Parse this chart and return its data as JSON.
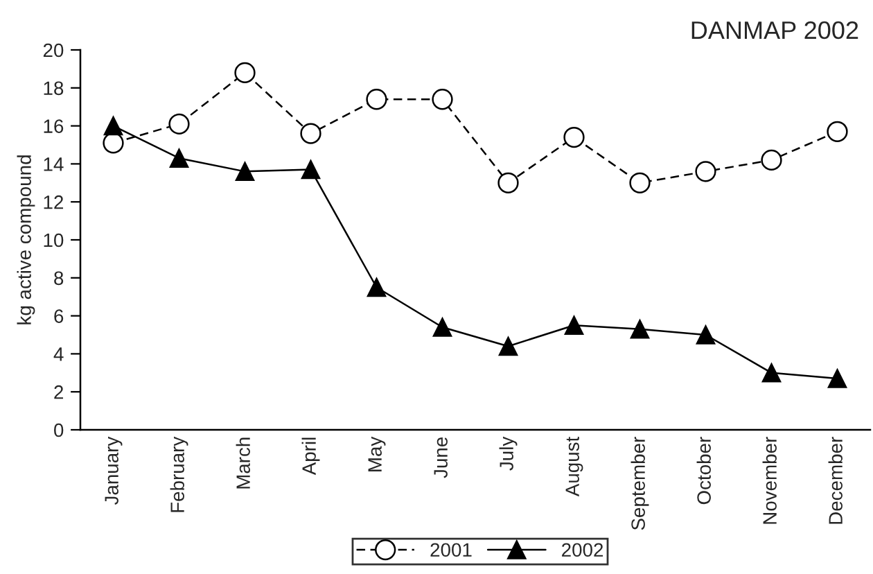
{
  "chart_data": {
    "type": "line",
    "title": "DANMAP 2002",
    "ylabel": "kg active compound",
    "categories": [
      "January",
      "February",
      "March",
      "April",
      "May",
      "June",
      "July",
      "August",
      "September",
      "October",
      "November",
      "December"
    ],
    "series": [
      {
        "name": "2001",
        "color": "#000000",
        "marker": "circle",
        "line_style": "dashed",
        "values": [
          15.1,
          16.1,
          18.8,
          15.6,
          17.4,
          17.4,
          13.0,
          15.4,
          13.0,
          13.6,
          14.2,
          15.7
        ]
      },
      {
        "name": "2002",
        "color": "#000000",
        "marker": "triangle",
        "line_style": "solid",
        "values": [
          16.0,
          14.3,
          13.6,
          13.7,
          7.5,
          5.4,
          4.4,
          5.5,
          5.3,
          5.0,
          3.0,
          2.7
        ]
      }
    ],
    "ylim": [
      0,
      20
    ],
    "yticks": [
      0,
      2,
      4,
      6,
      8,
      10,
      12,
      14,
      16,
      18,
      20
    ],
    "grid": false,
    "legend": "bottom"
  }
}
